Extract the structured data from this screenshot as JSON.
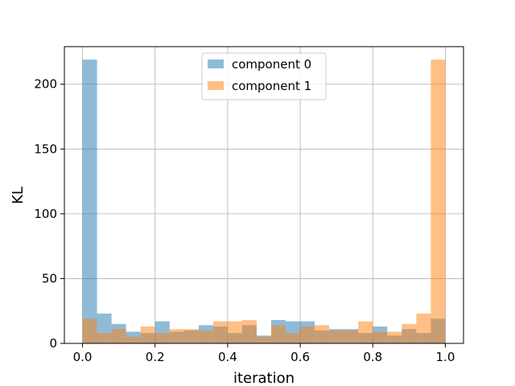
{
  "chart_data": {
    "type": "bar",
    "xlabel": "iteration",
    "ylabel": "KL",
    "xlim": [
      -0.05,
      1.05
    ],
    "ylim": [
      0,
      229
    ],
    "xticks": [
      "0.0",
      "0.2",
      "0.4",
      "0.6",
      "0.8",
      "1.0"
    ],
    "xtick_values": [
      0.0,
      0.2,
      0.4,
      0.6,
      0.8,
      1.0
    ],
    "yticks": [
      "0",
      "50",
      "100",
      "150",
      "200"
    ],
    "ytick_values": [
      0,
      50,
      100,
      150,
      200
    ],
    "grid": true,
    "legend_position": "top-center",
    "bin_edges": [
      0.0,
      0.04,
      0.08,
      0.12,
      0.16,
      0.2,
      0.24,
      0.28,
      0.32,
      0.36,
      0.4,
      0.44,
      0.48,
      0.52,
      0.56,
      0.6,
      0.64,
      0.68,
      0.72,
      0.76,
      0.8,
      0.84,
      0.88,
      0.92,
      0.96,
      1.0
    ],
    "series": [
      {
        "name": "component 0",
        "color": "#1f77b4",
        "values": [
          219,
          23,
          15,
          9,
          8,
          17,
          9,
          10,
          14,
          13,
          8,
          14,
          6,
          18,
          17,
          17,
          10,
          11,
          11,
          8,
          13,
          6,
          11,
          8,
          19
        ]
      },
      {
        "name": "component 1",
        "color": "#ff7f0e",
        "values": [
          19,
          8,
          11,
          5,
          13,
          8,
          11,
          11,
          10,
          17,
          17,
          18,
          5,
          14,
          8,
          13,
          14,
          10,
          10,
          17,
          9,
          9,
          15,
          23,
          219
        ]
      }
    ]
  }
}
